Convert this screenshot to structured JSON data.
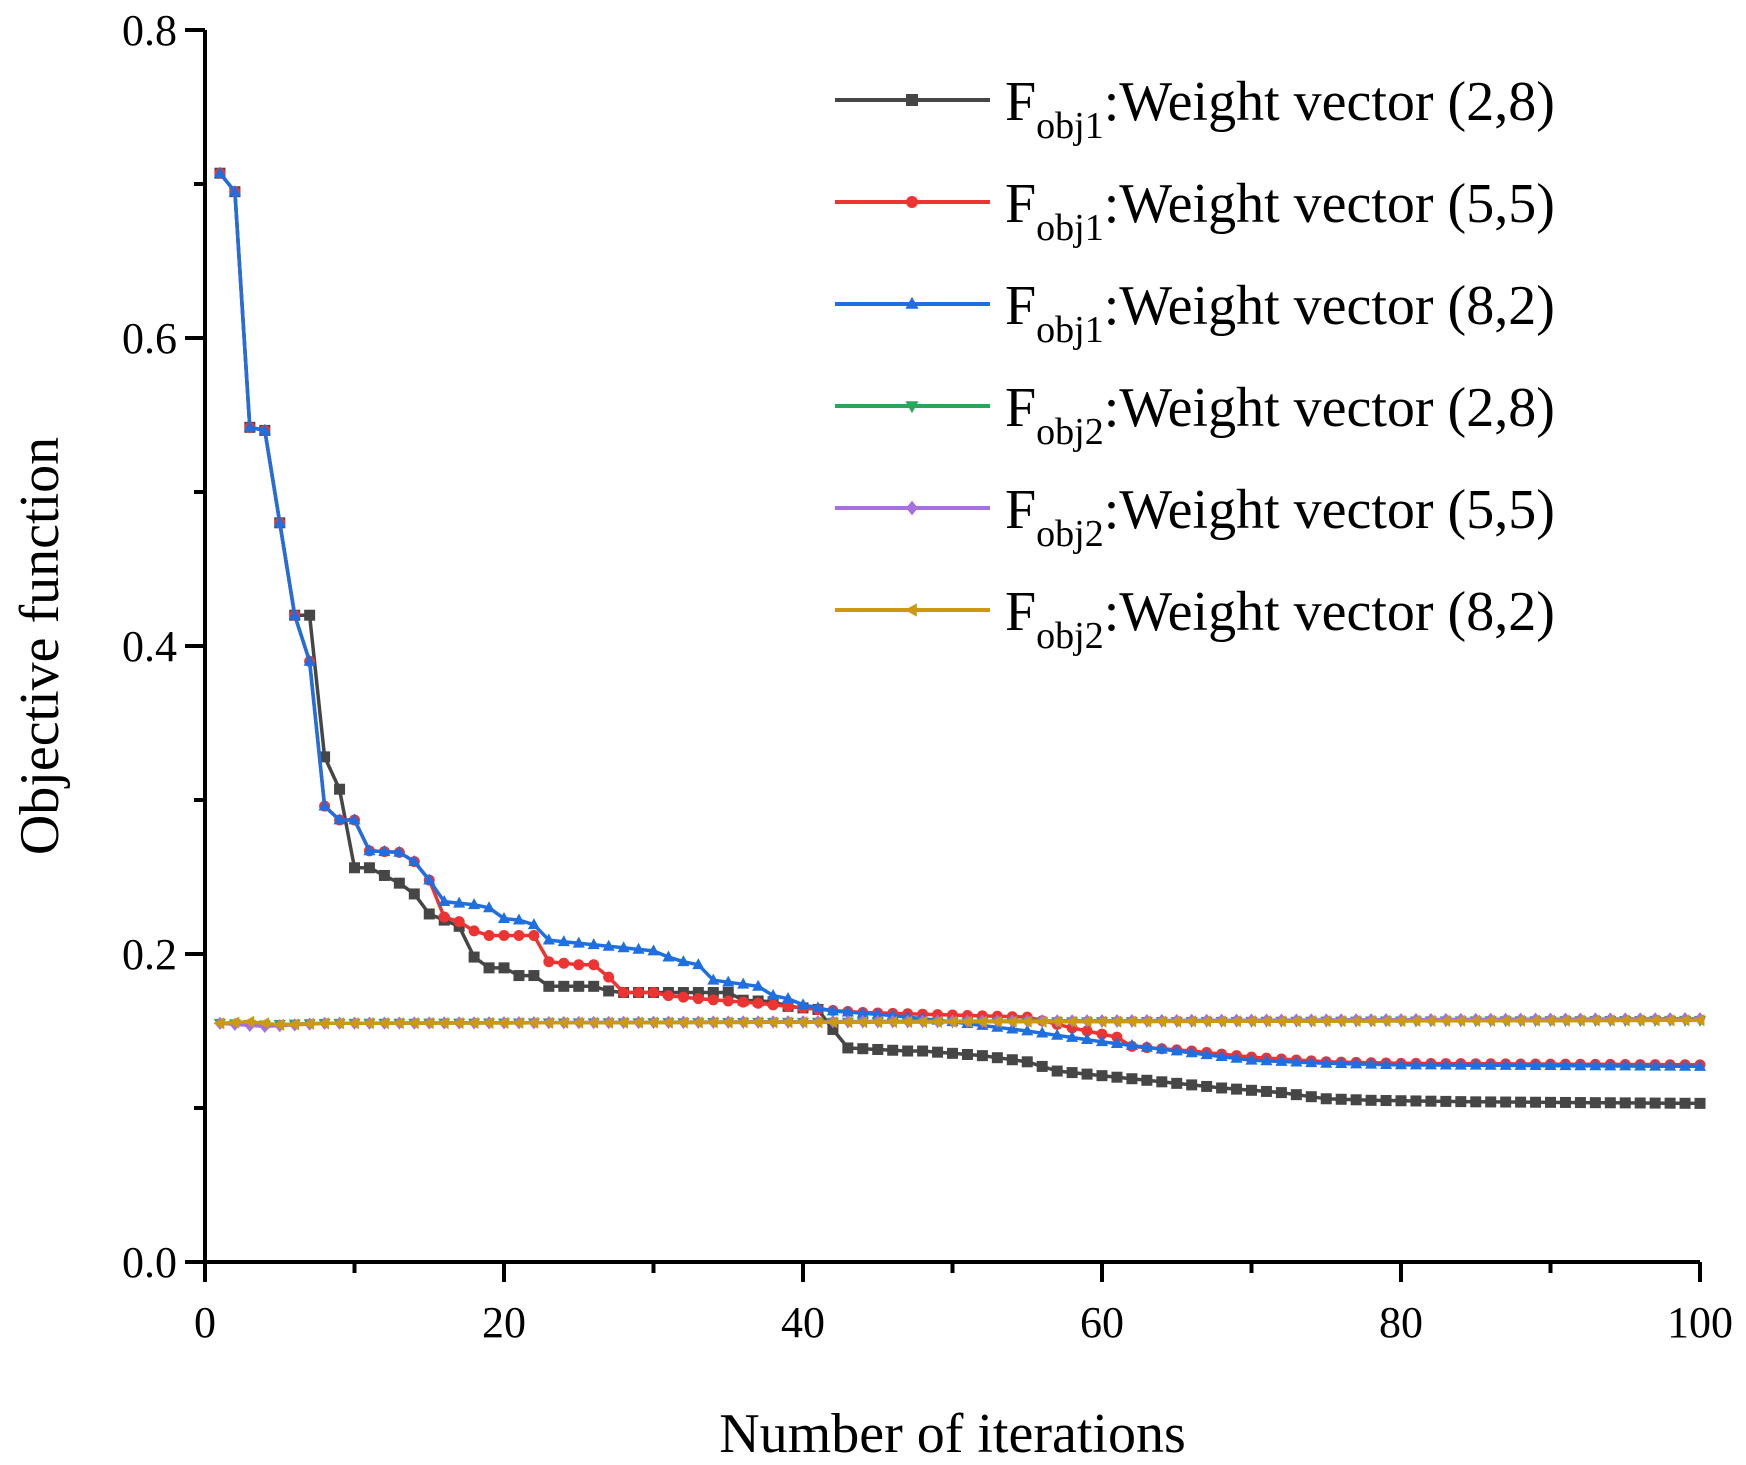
{
  "chart_data": {
    "type": "line",
    "title": "",
    "xlabel": "Number of iterations",
    "ylabel": "Objective function",
    "xlim": [
      0,
      100
    ],
    "ylim": [
      0.0,
      0.8
    ],
    "x_ticks": [
      0,
      20,
      40,
      60,
      80,
      100
    ],
    "x_tick_labels": [
      "0",
      "20",
      "40",
      "60",
      "80",
      "100"
    ],
    "y_ticks": [
      0.0,
      0.2,
      0.4,
      0.6,
      0.8
    ],
    "y_tick_labels": [
      "0.0",
      "0.2",
      "0.4",
      "0.6",
      "0.8"
    ],
    "grid": false,
    "legend_position": "top-right",
    "x_start": 1,
    "series": [
      {
        "name": "Fobj1:Weight vector (2,8)",
        "label_main": "F",
        "label_sub": "obj1",
        "label_rest": ":Weight vector (2,8)",
        "color": "#464646",
        "marker": "square",
        "keyframes": [
          [
            1,
            0.707
          ],
          [
            2,
            0.695
          ],
          [
            3,
            0.542
          ],
          [
            4,
            0.54
          ],
          [
            5,
            0.48
          ],
          [
            6,
            0.42
          ],
          [
            7,
            0.42
          ],
          [
            8,
            0.328
          ],
          [
            9,
            0.307
          ],
          [
            10,
            0.256
          ],
          [
            11,
            0.256
          ],
          [
            12,
            0.251
          ],
          [
            13,
            0.246
          ],
          [
            14,
            0.239
          ],
          [
            15,
            0.226
          ],
          [
            17,
            0.218
          ],
          [
            18,
            0.198
          ],
          [
            19,
            0.191
          ],
          [
            20,
            0.191
          ],
          [
            21,
            0.186
          ],
          [
            22,
            0.186
          ],
          [
            23,
            0.179
          ],
          [
            26,
            0.179
          ],
          [
            27,
            0.176
          ],
          [
            28,
            0.175
          ],
          [
            35,
            0.175
          ],
          [
            36,
            0.17
          ],
          [
            38,
            0.169
          ],
          [
            39,
            0.166
          ],
          [
            41,
            0.164
          ],
          [
            42,
            0.151
          ],
          [
            43,
            0.139
          ],
          [
            47,
            0.137
          ],
          [
            48,
            0.137
          ],
          [
            52,
            0.134
          ],
          [
            55,
            0.13
          ],
          [
            57,
            0.124
          ],
          [
            60,
            0.121
          ],
          [
            64,
            0.117
          ],
          [
            68,
            0.113
          ],
          [
            72,
            0.11
          ],
          [
            75,
            0.106
          ],
          [
            78,
            0.105
          ],
          [
            85,
            0.104
          ],
          [
            100,
            0.103
          ]
        ]
      },
      {
        "name": "Fobj1:Weight vector (5,5)",
        "label_main": "F",
        "label_sub": "obj1",
        "label_rest": ":Weight vector (5,5)",
        "color": "#ee3333",
        "marker": "circle",
        "keyframes": [
          [
            1,
            0.707
          ],
          [
            2,
            0.695
          ],
          [
            3,
            0.542
          ],
          [
            4,
            0.54
          ],
          [
            5,
            0.48
          ],
          [
            6,
            0.42
          ],
          [
            7,
            0.39
          ],
          [
            8,
            0.296
          ],
          [
            9,
            0.287
          ],
          [
            10,
            0.287
          ],
          [
            11,
            0.267
          ],
          [
            13,
            0.266
          ],
          [
            14,
            0.26
          ],
          [
            15,
            0.248
          ],
          [
            16,
            0.224
          ],
          [
            17,
            0.221
          ],
          [
            18,
            0.215
          ],
          [
            19,
            0.212
          ],
          [
            22,
            0.212
          ],
          [
            23,
            0.195
          ],
          [
            25,
            0.193
          ],
          [
            26,
            0.193
          ],
          [
            27,
            0.185
          ],
          [
            28,
            0.175
          ],
          [
            30,
            0.175
          ],
          [
            31,
            0.173
          ],
          [
            33,
            0.171
          ],
          [
            37,
            0.168
          ],
          [
            39,
            0.166
          ],
          [
            41,
            0.164
          ],
          [
            44,
            0.162
          ],
          [
            55,
            0.159
          ],
          [
            58,
            0.152
          ],
          [
            61,
            0.146
          ],
          [
            62,
            0.14
          ],
          [
            66,
            0.137
          ],
          [
            70,
            0.133
          ],
          [
            75,
            0.13
          ],
          [
            80,
            0.129
          ],
          [
            100,
            0.128
          ]
        ]
      },
      {
        "name": "Fobj1:Weight vector (8,2)",
        "label_main": "F",
        "label_sub": "obj1",
        "label_rest": ":Weight vector (8,2)",
        "color": "#1f6fe0",
        "marker": "triangle-up",
        "keyframes": [
          [
            1,
            0.707
          ],
          [
            2,
            0.695
          ],
          [
            3,
            0.542
          ],
          [
            4,
            0.54
          ],
          [
            5,
            0.48
          ],
          [
            6,
            0.42
          ],
          [
            7,
            0.39
          ],
          [
            8,
            0.296
          ],
          [
            9,
            0.287
          ],
          [
            10,
            0.287
          ],
          [
            11,
            0.267
          ],
          [
            13,
            0.266
          ],
          [
            14,
            0.26
          ],
          [
            15,
            0.248
          ],
          [
            16,
            0.234
          ],
          [
            18,
            0.232
          ],
          [
            19,
            0.23
          ],
          [
            20,
            0.223
          ],
          [
            21,
            0.222
          ],
          [
            22,
            0.219
          ],
          [
            23,
            0.209
          ],
          [
            24,
            0.208
          ],
          [
            25,
            0.207
          ],
          [
            28,
            0.204
          ],
          [
            30,
            0.202
          ],
          [
            31,
            0.198
          ],
          [
            32,
            0.195
          ],
          [
            33,
            0.193
          ],
          [
            34,
            0.183
          ],
          [
            37,
            0.179
          ],
          [
            38,
            0.173
          ],
          [
            39,
            0.171
          ],
          [
            40,
            0.167
          ],
          [
            42,
            0.163
          ],
          [
            46,
            0.16
          ],
          [
            50,
            0.156
          ],
          [
            55,
            0.15
          ],
          [
            60,
            0.143
          ],
          [
            65,
            0.137
          ],
          [
            70,
            0.131
          ],
          [
            75,
            0.129
          ],
          [
            80,
            0.128
          ],
          [
            100,
            0.127
          ]
        ]
      },
      {
        "name": "Fobj2:Weight vector (2,8)",
        "label_main": "F",
        "label_sub": "obj2",
        "label_rest": ":Weight vector (2,8)",
        "color": "#2aa65a",
        "marker": "triangle-down",
        "keyframes": [
          [
            1,
            0.155
          ],
          [
            4,
            0.154
          ],
          [
            8,
            0.155
          ],
          [
            100,
            0.157
          ]
        ]
      },
      {
        "name": "Fobj2:Weight vector (5,5)",
        "label_main": "F",
        "label_sub": "obj2",
        "label_rest": ":Weight vector (5,5)",
        "color": "#a670e0",
        "marker": "diamond",
        "keyframes": [
          [
            1,
            0.155
          ],
          [
            4,
            0.153
          ],
          [
            8,
            0.155
          ],
          [
            100,
            0.158
          ]
        ]
      },
      {
        "name": "Fobj2:Weight vector (8,2)",
        "label_main": "F",
        "label_sub": "obj2",
        "label_rest": ":Weight vector (8,2)",
        "color": "#cc9910",
        "marker": "triangle-left",
        "keyframes": [
          [
            1,
            0.155
          ],
          [
            3,
            0.156
          ],
          [
            5,
            0.154
          ],
          [
            8,
            0.155
          ],
          [
            100,
            0.157
          ]
        ]
      }
    ]
  }
}
